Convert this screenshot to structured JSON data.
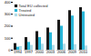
{
  "chart_data": {
    "type": "bar",
    "categories": [
      "1994",
      "1997",
      "2000",
      "2003",
      "2006",
      "2009",
      "2010"
    ],
    "series": [
      {
        "name": "Total EU collected",
        "color": "#1a1a1a",
        "values": [
          55,
          105,
          155,
          185,
          250,
          330,
          355
        ]
      },
      {
        "name": "Treated",
        "color": "#29b6d8",
        "values": [
          25,
          65,
          105,
          145,
          200,
          285,
          320
        ]
      },
      {
        "name": "Untreated",
        "color": "#b0dce8",
        "values": [
          30,
          40,
          50,
          40,
          50,
          45,
          35
        ]
      }
    ],
    "ylim": [
      0,
      400
    ],
    "yticks": [
      0,
      100,
      200,
      300,
      400
    ],
    "legend": "upper left"
  }
}
